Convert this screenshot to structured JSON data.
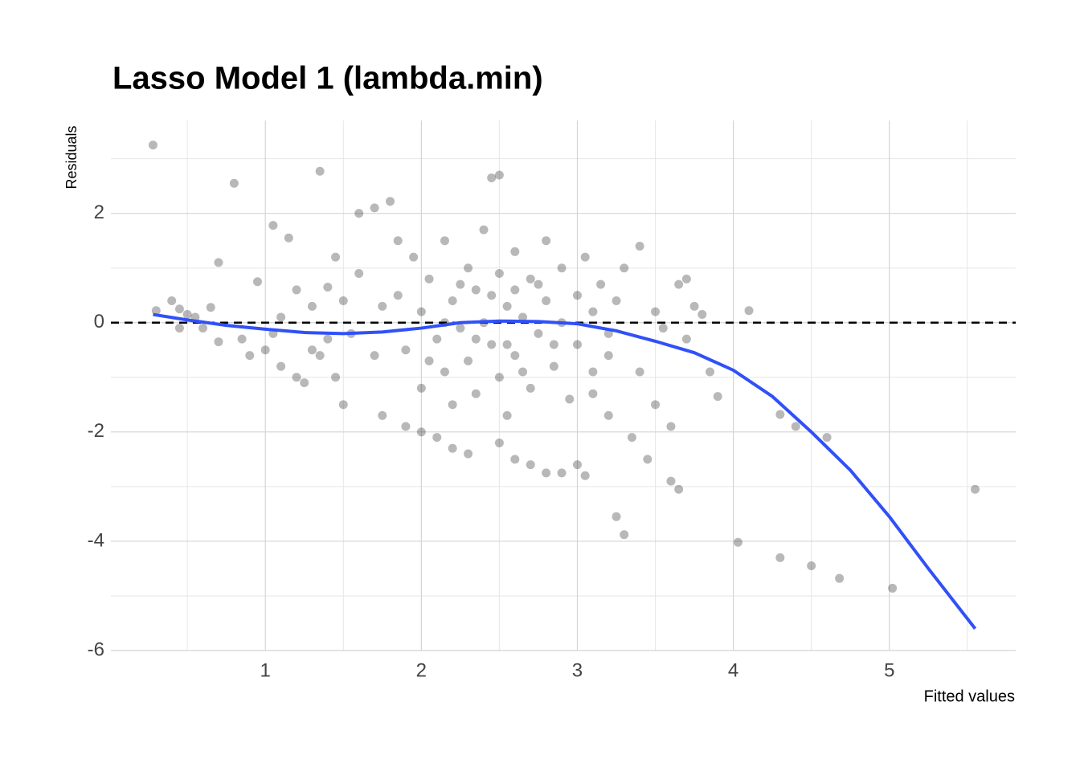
{
  "chart_data": {
    "type": "scatter",
    "title": "Lasso Model 1 (lambda.min)",
    "xlabel": "Fitted values",
    "ylabel": "Residuals",
    "xlim": [
      0.01,
      5.81
    ],
    "ylim": [
      -6,
      3.7
    ],
    "xticks": [
      1,
      2,
      3,
      4,
      5
    ],
    "yticks": [
      -6,
      -4,
      -2,
      0,
      2
    ],
    "grid": true,
    "minor_grid": true,
    "hline": 0,
    "points": {
      "color": "#000000",
      "x": [
        0.28,
        0.8,
        1.35,
        0.7,
        0.3,
        0.4,
        0.45,
        0.5,
        0.55,
        0.6,
        0.65,
        0.7,
        0.45,
        0.85,
        0.9,
        0.95,
        1.0,
        1.05,
        1.1,
        1.15,
        1.2,
        1.25,
        1.3,
        1.35,
        1.4,
        1.45,
        1.6,
        1.7,
        1.8,
        1.85,
        1.5,
        1.75,
        1.9,
        2.0,
        2.1,
        2.2,
        2.3,
        2.45,
        2.5,
        2.5,
        2.6,
        2.7,
        2.8,
        2.9,
        3.0,
        3.05,
        3.1,
        3.2,
        3.25,
        3.3,
        3.35,
        3.45,
        3.6,
        3.65,
        3.3,
        3.4,
        3.5,
        3.65,
        3.7,
        3.75,
        3.8,
        3.55,
        3.7,
        3.85,
        3.9,
        4.1,
        4.03,
        4.3,
        4.3,
        4.4,
        4.5,
        4.6,
        4.68,
        5.02,
        5.55,
        3.5,
        3.6,
        3.2,
        3.4,
        1.85,
        1.9,
        1.95,
        2.0,
        2.0,
        2.05,
        2.1,
        2.15,
        2.15,
        2.2,
        2.2,
        2.25,
        2.3,
        2.3,
        2.35,
        2.35,
        2.4,
        2.4,
        2.45,
        2.5,
        2.5,
        2.55,
        2.55,
        2.6,
        2.6,
        2.65,
        2.7,
        2.7,
        2.75,
        2.8,
        2.8,
        2.85,
        2.9,
        2.9,
        2.95,
        3.0,
        3.0,
        3.05,
        3.1,
        3.1,
        3.15,
        3.2,
        3.25,
        2.45,
        2.65,
        2.25,
        2.05,
        1.75,
        1.7,
        1.6,
        1.55,
        1.5,
        1.45,
        1.4,
        1.3,
        1.2,
        1.1,
        1.05,
        2.35,
        2.55,
        2.75,
        2.15,
        2.6,
        2.85
      ],
      "y": [
        3.25,
        2.55,
        2.77,
        1.1,
        0.22,
        0.4,
        0.25,
        0.15,
        0.1,
        -0.1,
        0.28,
        -0.35,
        -0.1,
        -0.3,
        -0.6,
        0.75,
        -0.5,
        1.78,
        -0.8,
        1.55,
        -1.0,
        -1.1,
        -0.5,
        -0.6,
        0.65,
        -1.0,
        2.0,
        2.1,
        2.22,
        1.5,
        -1.5,
        -1.7,
        -1.9,
        -2.0,
        -2.1,
        -2.3,
        -2.4,
        2.65,
        2.7,
        -2.2,
        -2.5,
        -2.6,
        -2.75,
        -2.75,
        -2.6,
        -2.8,
        -1.3,
        -1.7,
        -3.55,
        -3.88,
        -2.1,
        -2.5,
        -2.9,
        -3.05,
        1.0,
        1.4,
        0.2,
        0.7,
        0.8,
        0.3,
        0.15,
        -0.1,
        -0.3,
        -0.9,
        -1.35,
        0.22,
        -4.02,
        -4.3,
        -1.68,
        -1.9,
        -4.45,
        -2.1,
        -4.68,
        -4.86,
        -3.05,
        -1.5,
        -1.9,
        -0.6,
        -0.9,
        0.5,
        -0.5,
        1.2,
        0.2,
        -1.2,
        0.8,
        -0.3,
        1.5,
        -0.9,
        0.4,
        -1.5,
        -0.1,
        1.0,
        -0.7,
        0.6,
        -1.3,
        0.0,
        1.7,
        -0.4,
        0.9,
        -1.0,
        0.3,
        -1.7,
        1.3,
        -0.6,
        0.1,
        0.8,
        -1.2,
        -0.2,
        1.5,
        0.4,
        -0.8,
        0.0,
        1.0,
        -1.4,
        0.5,
        -0.4,
        1.2,
        -0.9,
        0.2,
        0.7,
        -0.2,
        0.4,
        0.5,
        -0.9,
        0.7,
        -0.7,
        0.3,
        -0.6,
        0.9,
        -0.2,
        0.4,
        1.2,
        -0.3,
        0.3,
        0.6,
        0.1,
        -0.2,
        -0.3,
        -0.4,
        0.7,
        0.0,
        0.6,
        -0.4
      ]
    },
    "smooth": {
      "color": "#3050f8",
      "x": [
        0.28,
        0.5,
        0.75,
        1.0,
        1.25,
        1.5,
        1.75,
        2.0,
        2.25,
        2.5,
        2.75,
        3.0,
        3.25,
        3.5,
        3.75,
        4.0,
        4.25,
        4.5,
        4.75,
        5.0,
        5.25,
        5.55
      ],
      "y": [
        0.15,
        0.05,
        -0.05,
        -0.12,
        -0.18,
        -0.2,
        -0.17,
        -0.1,
        0.0,
        0.03,
        0.02,
        -0.02,
        -0.15,
        -0.34,
        -0.55,
        -0.87,
        -1.35,
        -2.0,
        -2.7,
        -3.55,
        -4.5,
        -5.6
      ]
    }
  }
}
